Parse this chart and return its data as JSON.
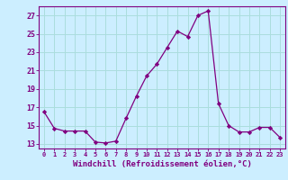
{
  "x": [
    0,
    1,
    2,
    3,
    4,
    5,
    6,
    7,
    8,
    9,
    10,
    11,
    12,
    13,
    14,
    15,
    16,
    17,
    18,
    19,
    20,
    21,
    22,
    23
  ],
  "y": [
    16.5,
    14.7,
    14.4,
    14.4,
    14.4,
    13.2,
    13.1,
    13.3,
    15.8,
    18.2,
    20.4,
    21.7,
    23.5,
    25.3,
    24.7,
    27.0,
    27.5,
    17.4,
    15.0,
    14.3,
    14.3,
    14.8,
    14.8,
    13.7
  ],
  "line_color": "#800080",
  "marker": "D",
  "marker_size": 2.2,
  "bg_color": "#cceeff",
  "grid_color": "#aadddd",
  "xlabel": "Windchill (Refroidissement éolien,°C)",
  "xlabel_color": "#800080",
  "tick_color": "#800080",
  "spine_color": "#800080",
  "ylim": [
    12.5,
    28.0
  ],
  "xlim": [
    -0.5,
    23.5
  ],
  "yticks": [
    13,
    15,
    17,
    19,
    21,
    23,
    25,
    27
  ],
  "xticks": [
    0,
    1,
    2,
    3,
    4,
    5,
    6,
    7,
    8,
    9,
    10,
    11,
    12,
    13,
    14,
    15,
    16,
    17,
    18,
    19,
    20,
    21,
    22,
    23
  ],
  "xlabel_fontsize": 6.5,
  "xtick_fontsize": 5.0,
  "ytick_fontsize": 6.0
}
